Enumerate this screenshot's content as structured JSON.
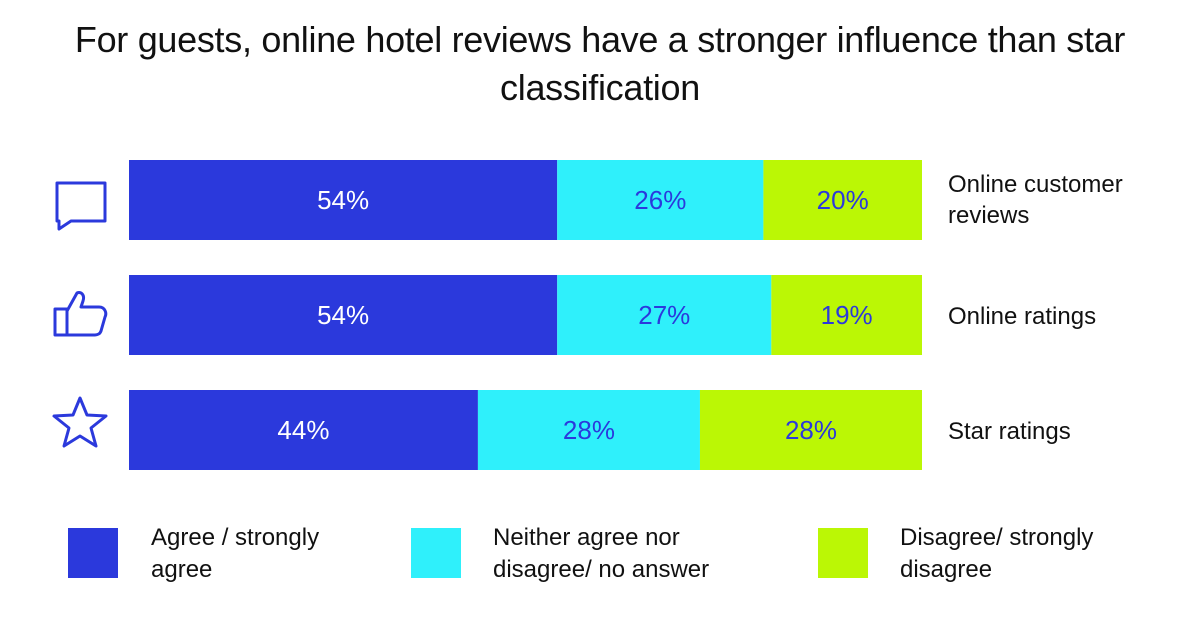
{
  "chart_data": {
    "type": "bar",
    "orientation": "horizontal",
    "stacked": true,
    "title": "For guests, online hotel reviews have a stronger influence than star classification",
    "categories": [
      "Online customer reviews",
      "Online ratings",
      "Star ratings"
    ],
    "category_icons": [
      "speech-bubble-icon",
      "thumbs-up-icon",
      "star-icon"
    ],
    "series": [
      {
        "name": "Agree / strongly agree",
        "values": [
          54,
          54,
          44
        ],
        "labels": [
          "54%",
          "54%",
          "44%"
        ],
        "color": "#2b39dc",
        "label_color": "#ffffff"
      },
      {
        "name": "Neither agree nor disagree/ no answer",
        "values": [
          26,
          27,
          28
        ],
        "labels": [
          "26%",
          "27%",
          "28%"
        ],
        "color": "#2ff0fb",
        "label_color": "#2b39dc"
      },
      {
        "name": "Disagree/ strongly disagree",
        "values": [
          20,
          19,
          28
        ],
        "labels": [
          "20%",
          "19%",
          "28%"
        ],
        "color": "#bbf705",
        "label_color": "#2b39dc"
      }
    ],
    "xlim": [
      0,
      100
    ],
    "grid": false,
    "legend_position": "bottom",
    "icon_color": "#2b39dc"
  }
}
